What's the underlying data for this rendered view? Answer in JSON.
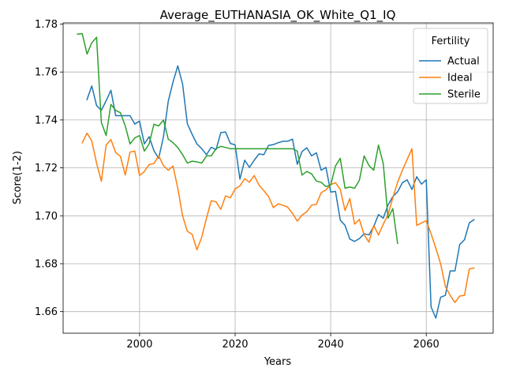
{
  "chart_data": {
    "type": "line",
    "title": "Average_EUTHANASIA_OK_White_Q1_IQ",
    "xlabel": "Years",
    "ylabel": "Score(1-2)",
    "xlim": [
      1984,
      2074
    ],
    "ylim": [
      1.651,
      1.7805
    ],
    "xticks": [
      2000,
      2020,
      2040,
      2060
    ],
    "yticks": [
      1.66,
      1.68,
      1.7,
      1.72,
      1.74,
      1.76,
      1.78
    ],
    "ytick_labels": [
      "1.66",
      "1.68",
      "1.70",
      "1.72",
      "1.74",
      "1.76",
      "1.78"
    ],
    "grid": true,
    "legend": {
      "title": "Fertility",
      "position": "top-right"
    },
    "series": [
      {
        "name": "Actual",
        "color": "#1f77b4",
        "x": [
          1989,
          1990,
          1991,
          1992,
          1993,
          1994,
          1995,
          1996,
          1997,
          1998,
          1999,
          2000,
          2001,
          2002,
          2003,
          2004,
          2005,
          2006,
          2007,
          2008,
          2009,
          2010,
          2011,
          2012,
          2013,
          2014,
          2015,
          2016,
          2017,
          2018,
          2019,
          2020,
          2021,
          2022,
          2023,
          2024,
          2025,
          2026,
          2027,
          2028,
          2029,
          2030,
          2031,
          2032,
          2033,
          2034,
          2035,
          2036,
          2037,
          2038,
          2039,
          2040,
          2041,
          2042,
          2043,
          2044,
          2045,
          2046,
          2047,
          2048,
          2049,
          2050,
          2051,
          2052,
          2053,
          2054,
          2055,
          2056,
          2057,
          2058,
          2059,
          2060,
          2061,
          2062,
          2063,
          2064,
          2065,
          2066,
          2067,
          2068,
          2069,
          2070
        ],
        "values": [
          1.7485,
          1.7542,
          1.746,
          1.744,
          1.748,
          1.7524,
          1.7418,
          1.7418,
          1.7418,
          1.7418,
          1.7383,
          1.7395,
          1.73,
          1.733,
          1.7272,
          1.724,
          1.733,
          1.7478,
          1.7558,
          1.7626,
          1.755,
          1.7384,
          1.734,
          1.73,
          1.728,
          1.7255,
          1.7286,
          1.7276,
          1.7347,
          1.735,
          1.7302,
          1.7296,
          1.7153,
          1.7232,
          1.7202,
          1.7232,
          1.7258,
          1.7255,
          1.7294,
          1.7297,
          1.7305,
          1.7311,
          1.7311,
          1.732,
          1.7215,
          1.7268,
          1.7284,
          1.725,
          1.7263,
          1.719,
          1.7202,
          1.7099,
          1.7102,
          1.6982,
          1.696,
          1.6903,
          1.6893,
          1.6905,
          1.6925,
          1.692,
          1.6955,
          1.7005,
          1.699,
          1.7045,
          1.708,
          1.71,
          1.7138,
          1.715,
          1.711,
          1.7163,
          1.7132,
          1.715,
          1.662,
          1.6573,
          1.666,
          1.6668,
          1.677,
          1.677,
          1.688,
          1.69,
          1.697,
          1.6984
        ]
      },
      {
        "name": "Ideal",
        "color": "#ff7f0e",
        "x": [
          1988,
          1989,
          1990,
          1991,
          1992,
          1993,
          1994,
          1995,
          1996,
          1997,
          1998,
          1999,
          2000,
          2001,
          2002,
          2003,
          2004,
          2005,
          2006,
          2007,
          2008,
          2009,
          2010,
          2011,
          2012,
          2013,
          2014,
          2015,
          2016,
          2017,
          2018,
          2019,
          2020,
          2021,
          2022,
          2023,
          2024,
          2025,
          2026,
          2027,
          2028,
          2029,
          2030,
          2031,
          2032,
          2033,
          2034,
          2035,
          2036,
          2037,
          2038,
          2039,
          2040,
          2041,
          2042,
          2043,
          2044,
          2045,
          2046,
          2047,
          2048,
          2049,
          2050,
          2051,
          2052,
          2053,
          2054,
          2055,
          2056,
          2057,
          2058,
          2059,
          2060,
          2061,
          2062,
          2063,
          2064,
          2065,
          2066,
          2067,
          2068,
          2069,
          2070
        ],
        "values": [
          1.7305,
          1.7345,
          1.7312,
          1.722,
          1.7144,
          1.7295,
          1.7318,
          1.7264,
          1.7248,
          1.717,
          1.7266,
          1.727,
          1.7168,
          1.7185,
          1.7214,
          1.7218,
          1.725,
          1.721,
          1.719,
          1.7208,
          1.7115,
          1.7,
          1.6935,
          1.6923,
          1.6858,
          1.691,
          1.699,
          1.7063,
          1.7058,
          1.7027,
          1.7083,
          1.7075,
          1.7112,
          1.7125,
          1.7155,
          1.714,
          1.7168,
          1.7128,
          1.7105,
          1.708,
          1.7034,
          1.705,
          1.7044,
          1.7036,
          1.701,
          1.6978,
          1.7003,
          1.7017,
          1.7044,
          1.7048,
          1.7096,
          1.7108,
          1.713,
          1.7138,
          1.711,
          1.7022,
          1.7072,
          1.6965,
          1.6985,
          1.692,
          1.689,
          1.696,
          1.692,
          1.6965,
          1.7005,
          1.7075,
          1.714,
          1.719,
          1.7235,
          1.728,
          1.696,
          1.697,
          1.698,
          1.6925,
          1.6865,
          1.68,
          1.6705,
          1.6668,
          1.6638,
          1.6665,
          1.6668,
          1.6778,
          1.6782
        ]
      },
      {
        "name": "Sterile",
        "color": "#2ca02c",
        "x": [
          1987,
          1988,
          1989,
          1990,
          1991,
          1992,
          1993,
          1994,
          1995,
          1996,
          1997,
          1998,
          1999,
          2000,
          2001,
          2002,
          2003,
          2004,
          2005,
          2006,
          2007,
          2008,
          2009,
          2010,
          2011,
          2012,
          2013,
          2014,
          2015,
          2016,
          2017,
          2018,
          2019,
          2020,
          2021,
          2022,
          2023,
          2024,
          2025,
          2026,
          2027,
          2028,
          2029,
          2030,
          2031,
          2032,
          2033,
          2034,
          2035,
          2036,
          2037,
          2038,
          2039,
          2040,
          2041,
          2042,
          2043,
          2044,
          2045,
          2046,
          2047,
          2048,
          2049,
          2050,
          2051,
          2052,
          2053,
          2054
        ],
        "values": [
          1.7758,
          1.776,
          1.7675,
          1.7722,
          1.7745,
          1.739,
          1.7335,
          1.7465,
          1.744,
          1.743,
          1.7375,
          1.73,
          1.7325,
          1.7335,
          1.727,
          1.73,
          1.7382,
          1.7375,
          1.74,
          1.732,
          1.7305,
          1.7285,
          1.7255,
          1.722,
          1.7228,
          1.7225,
          1.722,
          1.725,
          1.725,
          1.728,
          1.729,
          1.7285,
          1.728,
          1.728,
          1.728,
          1.728,
          1.728,
          1.728,
          1.728,
          1.728,
          1.728,
          1.728,
          1.728,
          1.728,
          1.728,
          1.728,
          1.727,
          1.717,
          1.7185,
          1.7175,
          1.7145,
          1.714,
          1.7122,
          1.7128,
          1.7208,
          1.724,
          1.7115,
          1.712,
          1.7115,
          1.7148,
          1.725,
          1.721,
          1.719,
          1.7295,
          1.7218,
          1.699,
          1.703,
          1.6885
        ]
      }
    ]
  }
}
